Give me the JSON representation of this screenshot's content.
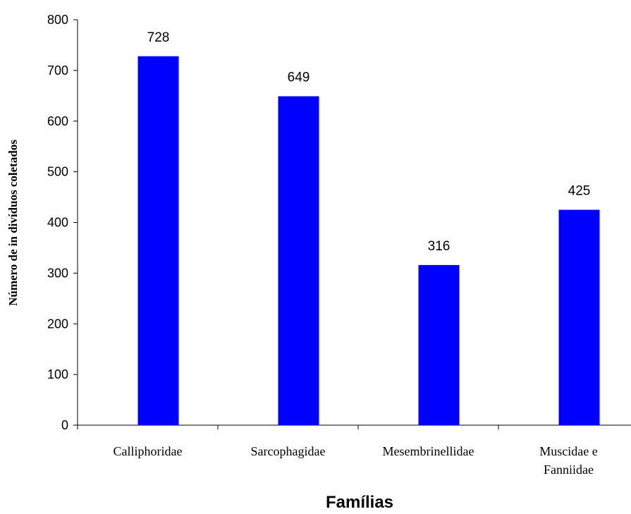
{
  "chart_data": {
    "type": "bar",
    "categories": [
      "Calliphoridae",
      "Sarcophagidae",
      "Mesembrinellidae",
      "Muscidae e Fanniidae"
    ],
    "category_lines": [
      [
        "Calliphoridae"
      ],
      [
        "Sarcophagidae"
      ],
      [
        "Mesembrinellidae"
      ],
      [
        "Muscidae e",
        "Fanniidae"
      ]
    ],
    "values": [
      728,
      649,
      316,
      425
    ],
    "data_labels": [
      "728",
      "649",
      "316",
      "425"
    ],
    "xlabel": "Famílias",
    "ylabel": "Número de in divíduos coletados",
    "ylim": [
      0,
      800
    ],
    "yticks": [
      0,
      100,
      200,
      300,
      400,
      500,
      600,
      700,
      800
    ],
    "bar_color": "#0000ff",
    "grid": false,
    "legend": "none"
  }
}
